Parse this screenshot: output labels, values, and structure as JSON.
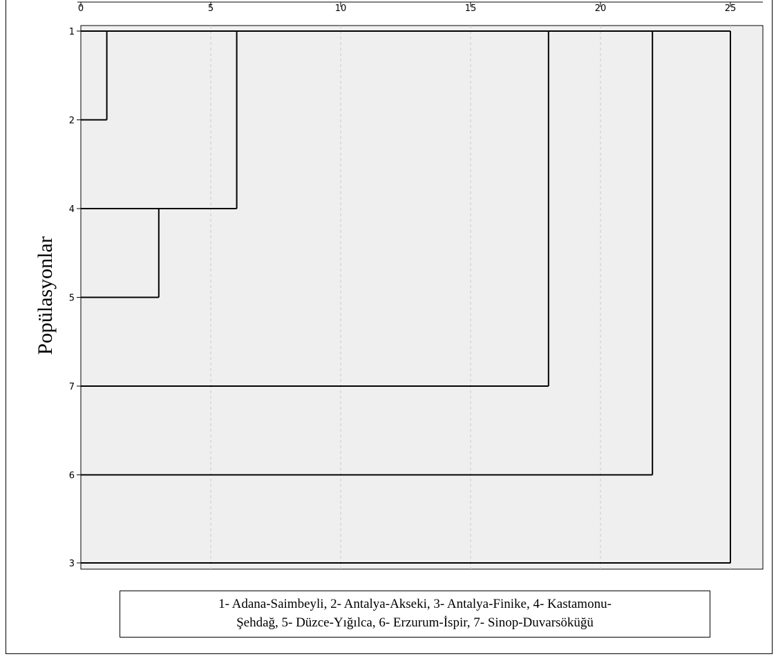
{
  "chart_data": {
    "type": "dendrogram",
    "ylabel": "Popülasyonlar",
    "xlabel": "",
    "xlim": [
      0,
      26.3
    ],
    "x_ticks": [
      0,
      5,
      10,
      15,
      20,
      25
    ],
    "x_tick_labels": [
      "0",
      "5",
      "10",
      "15",
      "20",
      "25"
    ],
    "grid": "vertical dashed",
    "leaves": [
      "1",
      "2",
      "4",
      "5",
      "7",
      "6",
      "3"
    ],
    "merges": [
      {
        "left": "1",
        "right": "2",
        "height": 1
      },
      {
        "left": "4",
        "right": "5",
        "height": 3
      },
      {
        "left": "1+2",
        "right": "4+5",
        "height": 6
      },
      {
        "left": "1+2+4+5",
        "right": "7",
        "height": 18
      },
      {
        "left": "1+2+4+5+7",
        "right": "6",
        "height": 22
      },
      {
        "left": "1+2+4+5+7+6",
        "right": "3",
        "height": 25
      }
    ],
    "colors": {
      "plot_background": "#efefef",
      "line": "#000000",
      "grid": "#c8c8c8"
    }
  },
  "legend": {
    "line1": "1- Adana-Saimbeyli, 2- Antalya-Akseki, 3- Antalya-Finike, 4- Kastamonu-",
    "line2": "Şehdağ, 5- Düzce-Yığılca, 6- Erzurum-İspir, 7- Sinop-Duvarsöküğü"
  }
}
